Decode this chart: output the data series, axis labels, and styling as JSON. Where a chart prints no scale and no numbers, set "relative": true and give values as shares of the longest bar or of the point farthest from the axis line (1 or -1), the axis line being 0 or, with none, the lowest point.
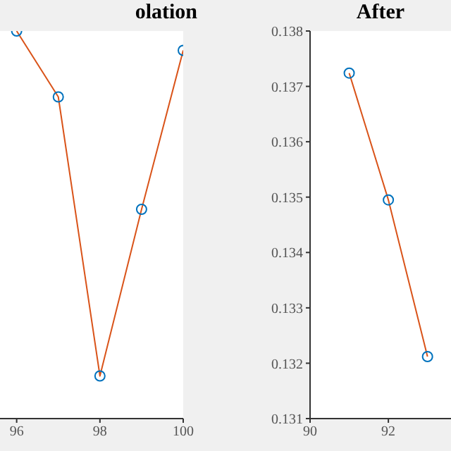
{
  "chart_data": [
    {
      "type": "line",
      "title": "olation",
      "relative": true,
      "x": [
        96,
        97,
        98,
        99,
        100
      ],
      "xlim": [
        95.6,
        100
      ],
      "xticks": [
        96,
        98,
        100
      ],
      "tick_labels": "x",
      "marker": "circle",
      "grid": false,
      "series": [
        {
          "color": "#d95319",
          "values": [
            1,
            0.83,
            0.11,
            0.54,
            0.95
          ]
        }
      ]
    },
    {
      "type": "line",
      "title": "After",
      "x": [
        91,
        92,
        93
      ],
      "xlim": [
        90,
        93.6
      ],
      "xticks": [
        90,
        92
      ],
      "ylim": [
        0.131,
        0.138
      ],
      "yticks": [
        0.131,
        0.132,
        0.133,
        0.134,
        0.135,
        0.136,
        0.137,
        0.138
      ],
      "marker": "circle",
      "grid": false,
      "series": [
        {
          "color": "#d95319",
          "values": [
            0.13724,
            0.13495,
            0.13212
          ]
        }
      ]
    }
  ]
}
